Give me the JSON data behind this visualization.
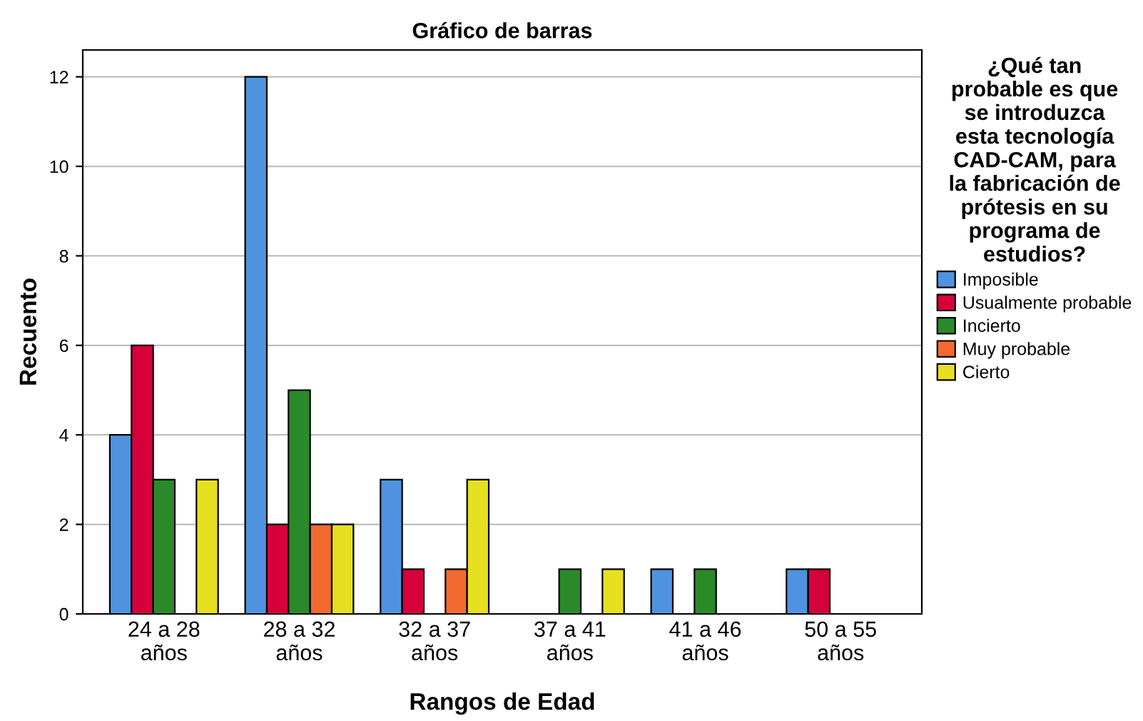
{
  "chart_data": {
    "type": "bar",
    "title": "Gráfico de barras",
    "xlabel": "Rangos de Edad",
    "ylabel": "Recuento",
    "legend_title": "¿Qué tan\nprobable es que\nse introduzca\nesta tecnología\nCAD-CAM, para\nla fabricación de\nprótesis en su\nprograma de\nestudios?",
    "categories": [
      "24 a 28\naños",
      "28 a 32\naños",
      "32 a 37\naños",
      "37 a 41\naños",
      "41 a 46\naños",
      "50 a 55\naños"
    ],
    "series": [
      {
        "name": "Imposible",
        "color": "#4f93e0",
        "values": [
          4,
          12,
          3,
          null,
          1,
          1
        ]
      },
      {
        "name": "Usualmente probable",
        "color": "#d6003a",
        "values": [
          6,
          2,
          1,
          null,
          null,
          1
        ]
      },
      {
        "name": "Incierto",
        "color": "#2a8a2a",
        "values": [
          3,
          5,
          null,
          1,
          1,
          null
        ]
      },
      {
        "name": "Muy probable",
        "color": "#f26a30",
        "values": [
          null,
          2,
          1,
          null,
          null,
          null
        ]
      },
      {
        "name": "Cierto",
        "color": "#e6e020",
        "values": [
          3,
          2,
          3,
          1,
          null,
          null
        ]
      }
    ],
    "ylim": [
      0,
      12.6
    ],
    "yticks": [
      0,
      2,
      4,
      6,
      8,
      10,
      12
    ],
    "grid": "y",
    "legend": "right"
  }
}
